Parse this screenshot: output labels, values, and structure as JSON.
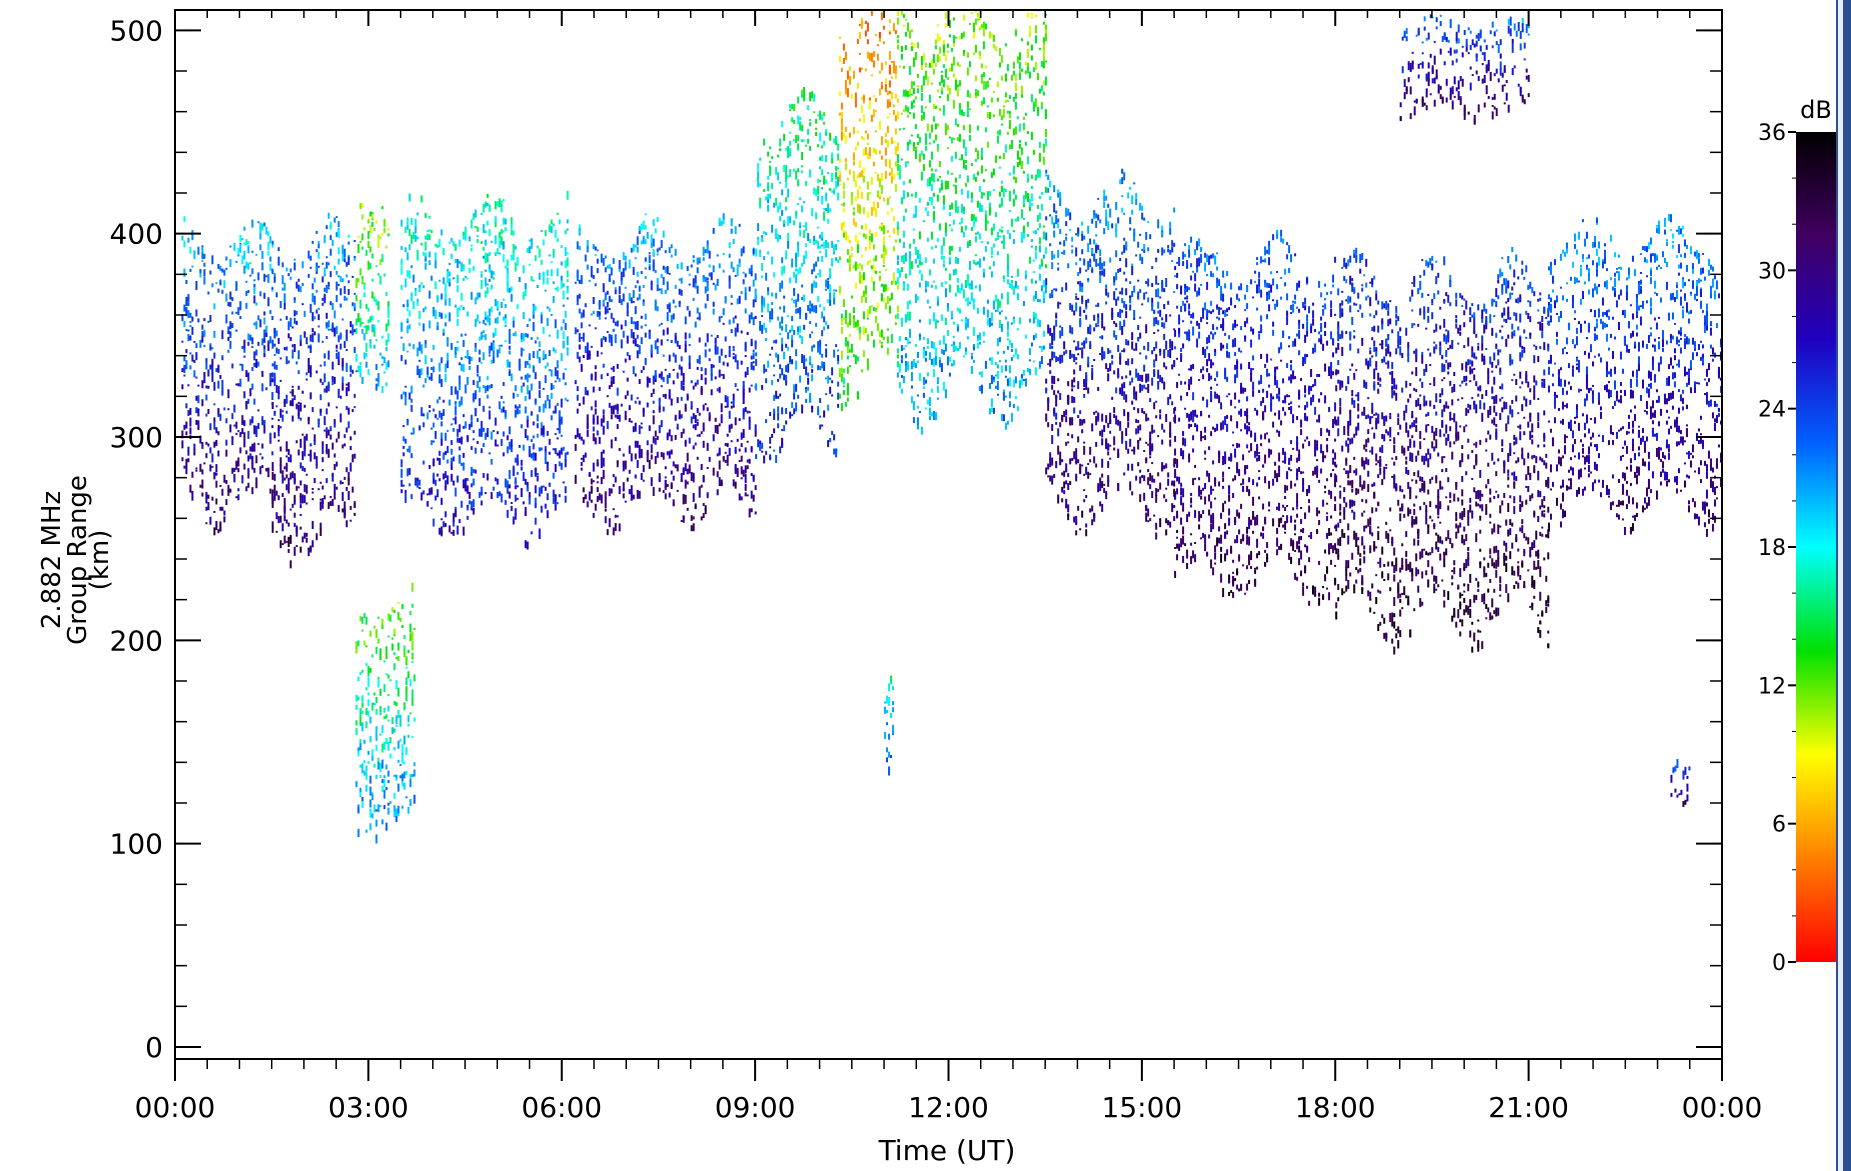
{
  "chart_data": {
    "type": "heatmap",
    "ylabel_lines": [
      "2.882 MHz",
      "Group Range",
      "(km)"
    ],
    "xlabel": "Time (UT)",
    "x_range_hours": [
      0,
      24
    ],
    "y_range_km": [
      0,
      510
    ],
    "x_tick_labels": [
      "00:00",
      "03:00",
      "06:00",
      "09:00",
      "12:00",
      "15:00",
      "18:00",
      "21:00",
      "00:00"
    ],
    "y_tick_values": [
      0,
      100,
      200,
      300,
      400,
      500
    ],
    "y_tick_labels": [
      "0",
      "100",
      "200",
      "300",
      "400",
      "500"
    ],
    "colorbar": {
      "unit": "dB",
      "range": [
        0,
        36
      ],
      "tick_labels": [
        "0",
        "6",
        "12",
        "18",
        "24",
        "30",
        "36"
      ],
      "colors": [
        "#ff0000",
        "#ff8000",
        "#ffff00",
        "#00e000",
        "#00ffff",
        "#0060ff",
        "#2000c0",
        "#400060",
        "#000000"
      ]
    },
    "echo_regions": [
      {
        "from_h": 0.1,
        "to_h": 1.5,
        "low_km": 265,
        "high_km": 400,
        "center_db": 25
      },
      {
        "from_h": 1.5,
        "to_h": 2.8,
        "low_km": 250,
        "high_km": 400,
        "center_db": 26
      },
      {
        "from_h": 2.8,
        "to_h": 3.3,
        "low_km": 330,
        "high_km": 420,
        "center_db": 15
      },
      {
        "from_h": 3.5,
        "to_h": 6.1,
        "low_km": 260,
        "high_km": 410,
        "center_db": 22
      },
      {
        "from_h": 6.2,
        "to_h": 9.0,
        "low_km": 265,
        "high_km": 400,
        "center_db": 26
      },
      {
        "from_h": 9.0,
        "to_h": 10.3,
        "low_km": 300,
        "high_km": 460,
        "center_db": 20
      },
      {
        "from_h": 10.3,
        "to_h": 11.2,
        "low_km": 330,
        "high_km": 510,
        "center_db": 9
      },
      {
        "from_h": 11.2,
        "to_h": 13.5,
        "low_km": 320,
        "high_km": 510,
        "center_db": 16
      },
      {
        "from_h": 13.5,
        "to_h": 15.5,
        "low_km": 265,
        "high_km": 420,
        "center_db": 26
      },
      {
        "from_h": 15.5,
        "to_h": 18.0,
        "low_km": 230,
        "high_km": 390,
        "center_db": 28
      },
      {
        "from_h": 18.0,
        "to_h": 21.3,
        "low_km": 210,
        "high_km": 380,
        "center_db": 29
      },
      {
        "from_h": 21.3,
        "to_h": 24.0,
        "low_km": 265,
        "high_km": 400,
        "center_db": 26
      },
      {
        "from_h": 2.8,
        "to_h": 3.7,
        "low_km": 110,
        "high_km": 220,
        "center_db": 17
      },
      {
        "from_h": 11.0,
        "to_h": 11.15,
        "low_km": 120,
        "high_km": 180,
        "center_db": 22
      },
      {
        "from_h": 23.2,
        "to_h": 23.5,
        "low_km": 120,
        "high_km": 145,
        "center_db": 26
      },
      {
        "from_h": 19.0,
        "to_h": 21.0,
        "low_km": 460,
        "high_km": 505,
        "center_db": 27
      }
    ]
  }
}
